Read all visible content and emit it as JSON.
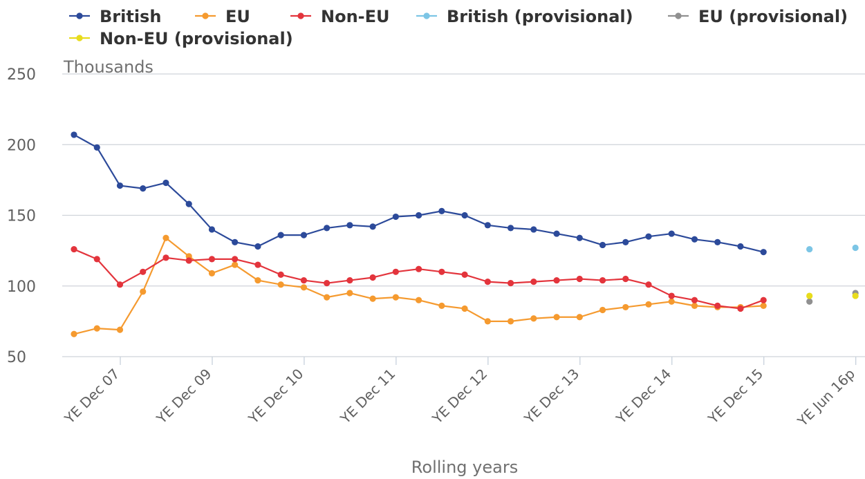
{
  "chart_data": {
    "type": "line",
    "title": "",
    "ylabel": "Thousands",
    "xlabel": "Rolling years",
    "ylim": [
      50,
      250
    ],
    "yticks": [
      50,
      100,
      150,
      200,
      250
    ],
    "grid": true,
    "legend_position": "top",
    "tick_labels": [
      {
        "label": "YE Dec 07",
        "index": 2
      },
      {
        "label": "YE Dec 09",
        "index": 6
      },
      {
        "label": "YE Dec 10",
        "index": 10
      },
      {
        "label": "YE Dec 11",
        "index": 14
      },
      {
        "label": "YE Dec 12",
        "index": 18
      },
      {
        "label": "YE Dec 13",
        "index": 22
      },
      {
        "label": "YE Dec 14",
        "index": 26
      },
      {
        "label": "YE Dec 15",
        "index": 30
      },
      {
        "label": "YE Jun 16p",
        "index": 34
      }
    ],
    "series": [
      {
        "name": "British",
        "color": "#2c4a9a",
        "line": true,
        "values": [
          207,
          198,
          171,
          169,
          173,
          158,
          140,
          131,
          128,
          136,
          136,
          141,
          143,
          142,
          149,
          150,
          153,
          150,
          143,
          141,
          140,
          137,
          134,
          129,
          131,
          135,
          137,
          133,
          131,
          128,
          124
        ]
      },
      {
        "name": "EU",
        "color": "#f59a2f",
        "line": true,
        "values": [
          66,
          70,
          69,
          96,
          134,
          121,
          109,
          115,
          104,
          101,
          99,
          92,
          95,
          91,
          92,
          90,
          86,
          84,
          75,
          75,
          77,
          78,
          78,
          83,
          85,
          87,
          89,
          86,
          85,
          85,
          86
        ]
      },
      {
        "name": "Non-EU",
        "color": "#e3343c",
        "line": true,
        "values": [
          126,
          119,
          101,
          110,
          120,
          118,
          119,
          119,
          115,
          108,
          104,
          102,
          104,
          106,
          110,
          112,
          110,
          108,
          103,
          102,
          103,
          104,
          105,
          104,
          105,
          101,
          93,
          90,
          86,
          84,
          90
        ]
      },
      {
        "name": "British (provisional)",
        "color": "#7cc5e5",
        "line": false,
        "points": [
          {
            "index": 32,
            "value": 126
          },
          {
            "index": 34,
            "value": 127
          }
        ]
      },
      {
        "name": "EU (provisional)",
        "color": "#909090",
        "line": false,
        "points": [
          {
            "index": 32,
            "value": 89
          },
          {
            "index": 34,
            "value": 95
          }
        ]
      },
      {
        "name": "Non-EU (provisional)",
        "color": "#e8dc1c",
        "line": false,
        "points": [
          {
            "index": 32,
            "value": 93
          },
          {
            "index": 34,
            "value": 93
          }
        ]
      }
    ]
  }
}
